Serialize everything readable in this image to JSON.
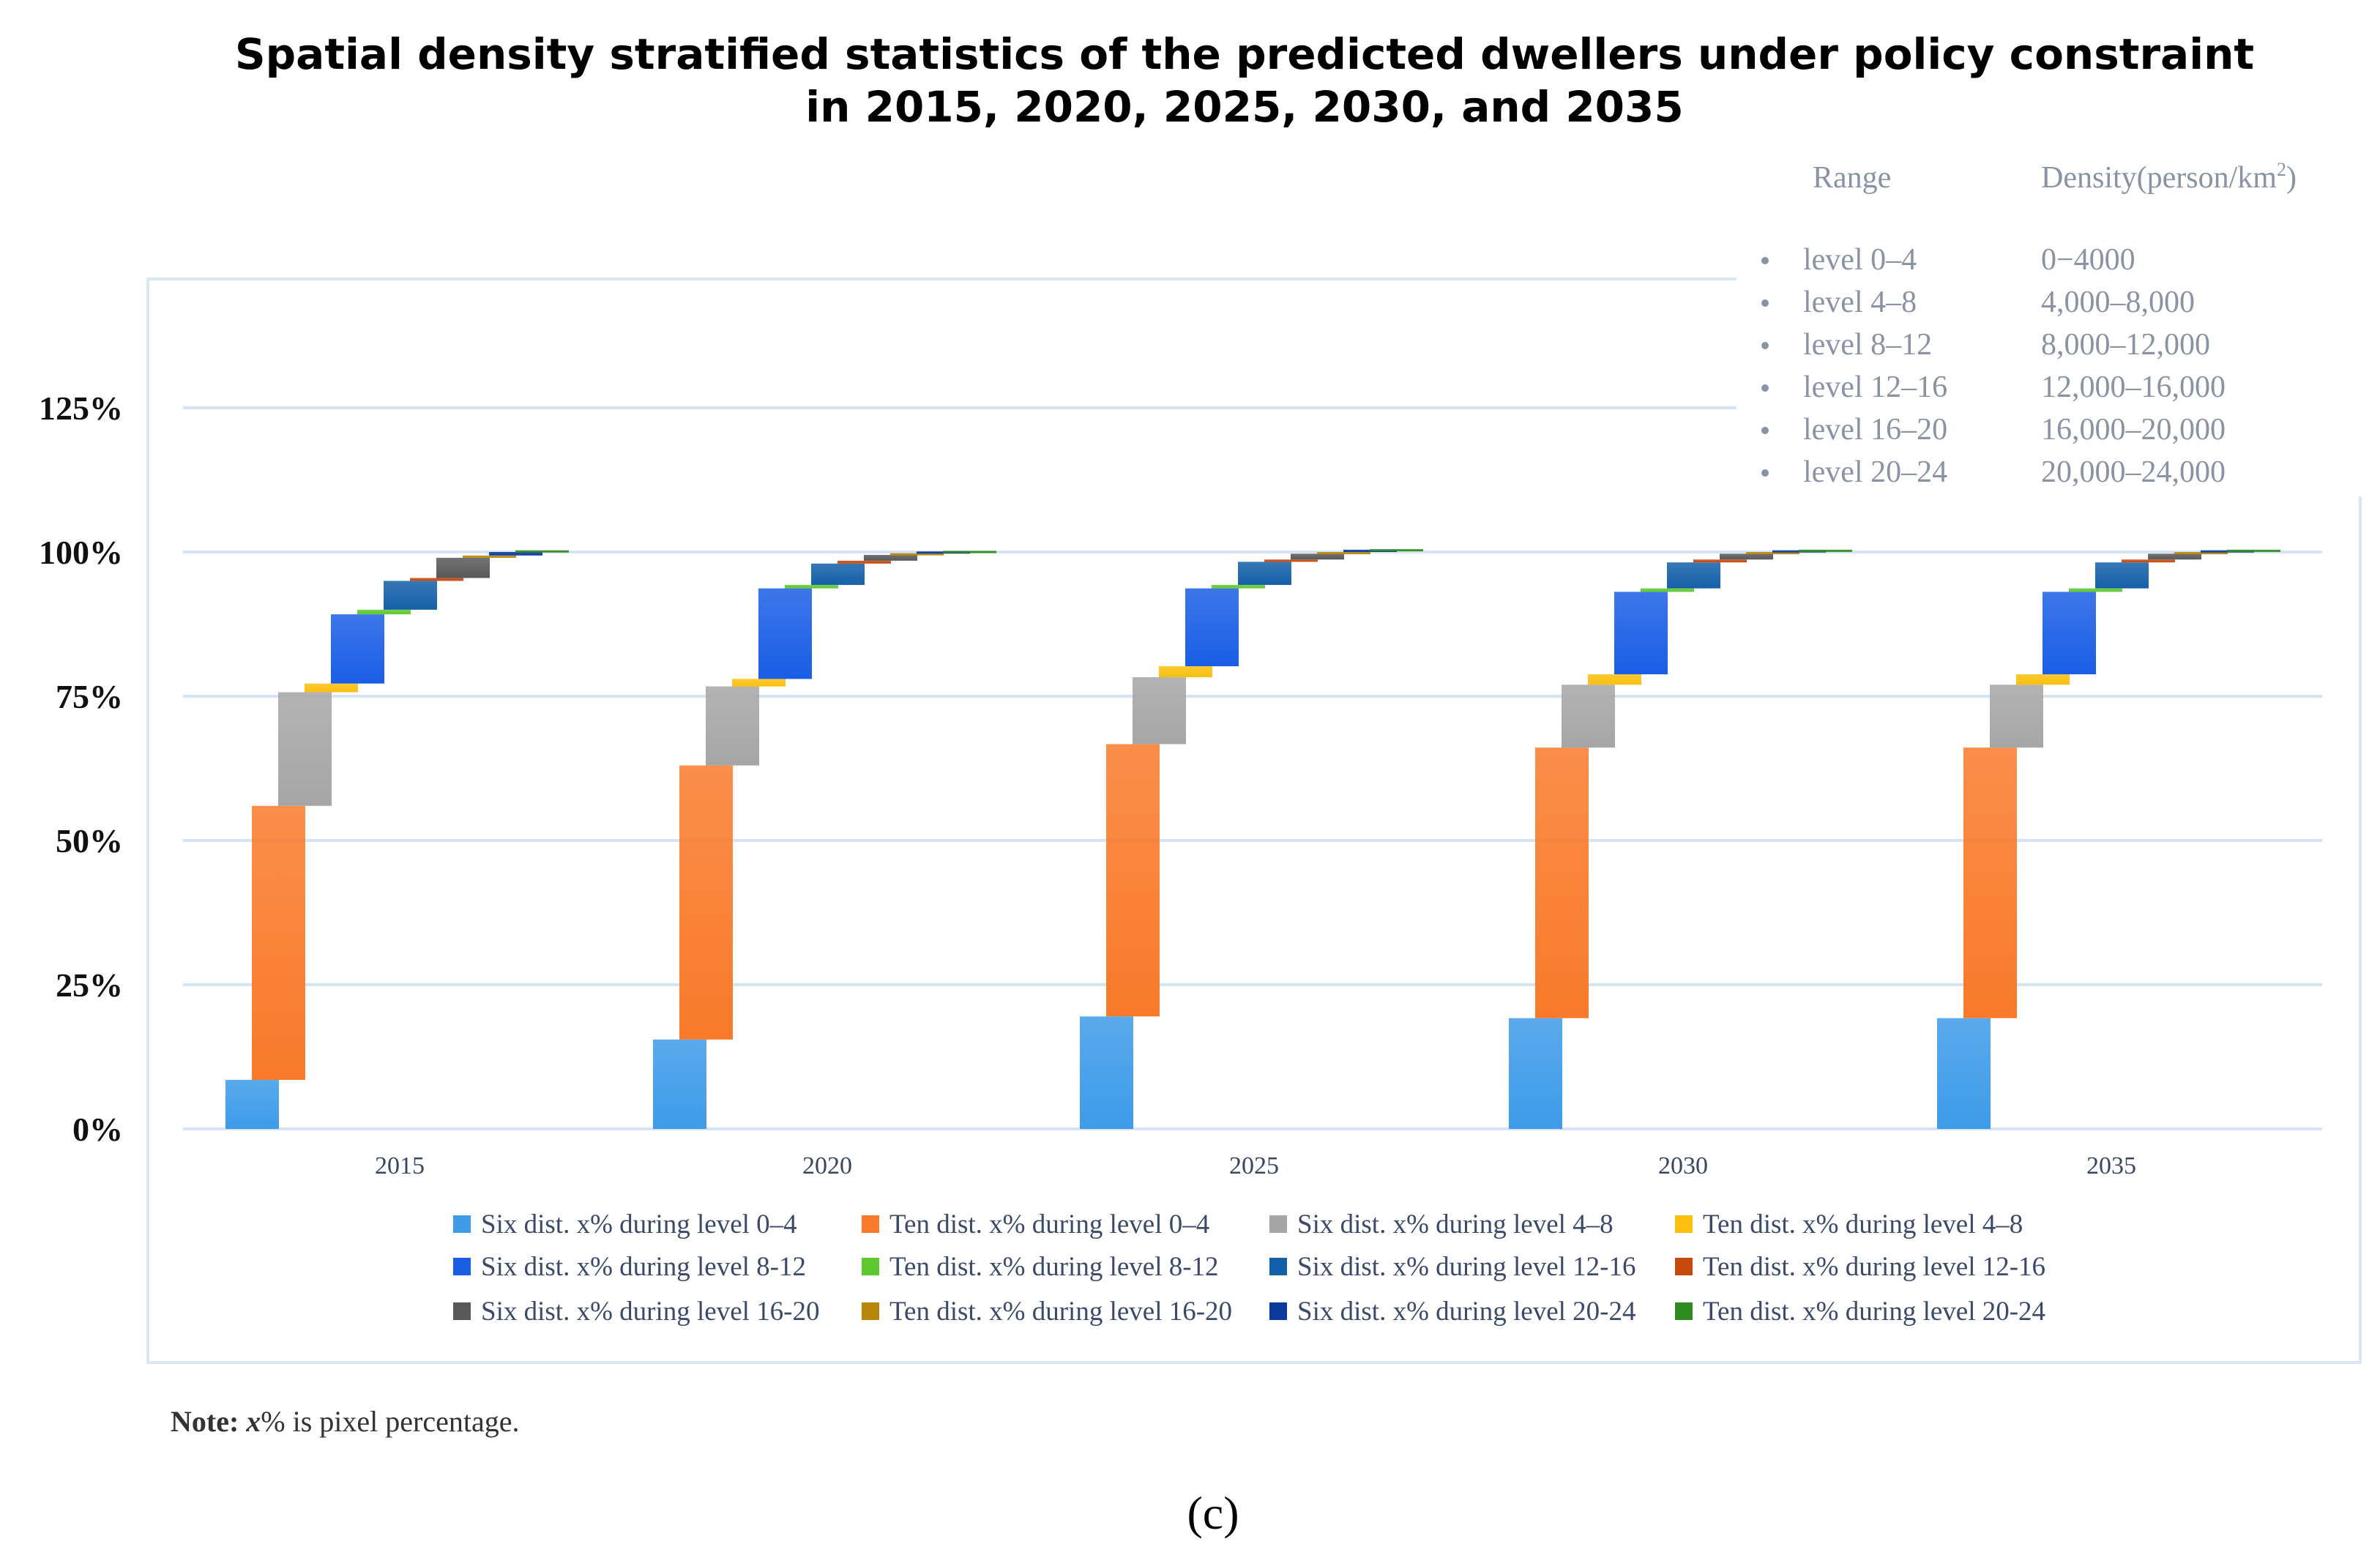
{
  "chart_data": {
    "type": "bar",
    "subtype": "waterfall-stacked",
    "title_line1": "Spatial density stratified statistics of the predicted dwellers under policy constraint",
    "title_line2": "in 2015, 2020, 2025, 2030, and 2035",
    "categories": [
      "2015",
      "2020",
      "2025",
      "2030",
      "2035"
    ],
    "yticks": [
      "0%",
      "25%",
      "50%",
      "75%",
      "100%",
      "125%"
    ],
    "ylim": [
      0,
      125
    ],
    "grid": true,
    "series": [
      {
        "name": "Six dist. x% during level 0–4",
        "color": "#3d9be9",
        "values": [
          8.5,
          15.5,
          19.5,
          19.2,
          19.2
        ]
      },
      {
        "name": "Ten dist. x% during level 0–4",
        "color": "#f97a2a",
        "values": [
          47.5,
          47.5,
          47.2,
          46.9,
          46.9
        ]
      },
      {
        "name": "Six dist. x% during level 4–8",
        "color": "#a6a6a6",
        "values": [
          19.7,
          13.7,
          11.6,
          10.9,
          10.9
        ]
      },
      {
        "name": "Ten dist. x% during level 4–8",
        "color": "#fbbf0f",
        "values": [
          1.5,
          1.3,
          1.9,
          1.8,
          1.8
        ]
      },
      {
        "name": "Six dist. x% during level 8-12",
        "color": "#1a5ee6",
        "values": [
          12.0,
          15.7,
          13.5,
          14.3,
          14.3
        ]
      },
      {
        "name": "Ten dist. x% during level 8-12",
        "color": "#5ec92c",
        "values": [
          0.8,
          0.6,
          0.6,
          0.6,
          0.6
        ]
      },
      {
        "name": "Six dist. x% during level 12-16",
        "color": "#1460a8",
        "values": [
          5.0,
          3.7,
          4.0,
          4.5,
          4.5
        ]
      },
      {
        "name": "Ten dist. x% during level 12-16",
        "color": "#c5480f",
        "values": [
          0.5,
          0.5,
          0.4,
          0.5,
          0.5
        ]
      },
      {
        "name": "Six dist. x% during level 16-20",
        "color": "#595959",
        "values": [
          3.5,
          1.0,
          1.0,
          1.0,
          1.0
        ]
      },
      {
        "name": "Ten dist. x% during level 16-20",
        "color": "#b8860b",
        "values": [
          0.4,
          0.3,
          0.3,
          0.3,
          0.3
        ]
      },
      {
        "name": "Six dist. x% during level 20-24",
        "color": "#0a3a9c",
        "values": [
          0.6,
          0.3,
          0.4,
          0.3,
          0.3
        ]
      },
      {
        "name": "Ten dist. x% during level 20-24",
        "color": "#2e8b1e",
        "values": [
          0.3,
          0.1,
          0.1,
          0.1,
          0.1
        ]
      }
    ],
    "legend_placement": "bottom"
  },
  "range_table": {
    "header_range": "Range",
    "header_density": "Density(person/km",
    "header_sup": "2",
    "header_close": ")",
    "rows": [
      {
        "level": "level 0–4",
        "density": "0−4000"
      },
      {
        "level": "level 4–8",
        "density": "4,000–8,000"
      },
      {
        "level": "level 8–12",
        "density": "8,000–12,000"
      },
      {
        "level": "level 12–16",
        "density": "12,000–16,000"
      },
      {
        "level": "level 16–20",
        "density": "16,000–20,000"
      },
      {
        "level": "level 20–24",
        "density": "20,000–24,000"
      }
    ]
  },
  "note": {
    "bold": "Note: ",
    "italic": "x",
    "rest": "% is pixel percentage."
  },
  "caption": "(c)"
}
